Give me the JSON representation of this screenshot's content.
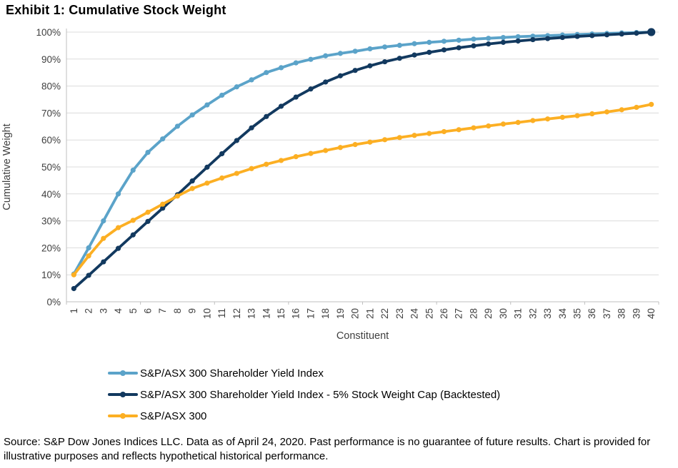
{
  "title": "Exhibit 1: Cumulative Stock Weight",
  "chart_data": {
    "type": "line",
    "title": "Exhibit 1: Cumulative Stock Weight",
    "xlabel": "Constituent",
    "ylabel": "Cumulative Weight",
    "x": [
      1,
      2,
      3,
      4,
      5,
      6,
      7,
      8,
      9,
      10,
      11,
      12,
      13,
      14,
      15,
      16,
      17,
      18,
      19,
      20,
      21,
      22,
      23,
      24,
      25,
      26,
      27,
      28,
      29,
      30,
      31,
      32,
      33,
      34,
      35,
      36,
      37,
      38,
      39,
      40
    ],
    "ylim": [
      0,
      100
    ],
    "ytick_labels": [
      "0%",
      "10%",
      "20%",
      "30%",
      "40%",
      "50%",
      "60%",
      "70%",
      "80%",
      "90%",
      "100%"
    ],
    "xtick_group": 5,
    "grid": true,
    "legend_position": "bottom-left",
    "colors": {
      "gridline": "#DCDCDC",
      "axis": "#BFBFBF"
    },
    "series": [
      {
        "name": "S&P/ASX 300 Shareholder Yield Index",
        "color": "#5BA3C9",
        "end_marker_large": false,
        "values": [
          10.3,
          20.0,
          30.0,
          40.0,
          48.8,
          55.4,
          60.4,
          65.1,
          69.3,
          73.0,
          76.6,
          79.7,
          82.3,
          85.0,
          86.8,
          88.6,
          89.9,
          91.2,
          92.1,
          92.9,
          93.8,
          94.5,
          95.1,
          95.7,
          96.2,
          96.6,
          97.0,
          97.4,
          97.7,
          98.0,
          98.3,
          98.5,
          98.7,
          98.9,
          99.1,
          99.3,
          99.5,
          99.7,
          99.85,
          100.0
        ]
      },
      {
        "name": "S&P/ASX 300 Shareholder Yield Index - 5% Stock Weight Cap (Backtested)",
        "color": "#12395F",
        "end_marker_large": true,
        "values": [
          4.9,
          9.8,
          14.8,
          19.8,
          24.8,
          29.8,
          34.7,
          39.7,
          44.8,
          49.9,
          54.9,
          59.8,
          64.5,
          68.7,
          72.5,
          75.9,
          78.9,
          81.5,
          83.8,
          85.8,
          87.5,
          89.0,
          90.3,
          91.5,
          92.5,
          93.4,
          94.2,
          94.9,
          95.6,
          96.2,
          96.7,
          97.2,
          97.6,
          98.0,
          98.4,
          98.7,
          99.0,
          99.3,
          99.6,
          100.0
        ]
      },
      {
        "name": "S&P/ASX 300",
        "color": "#FCAF23",
        "end_marker_large": false,
        "values": [
          10.0,
          17.0,
          23.5,
          27.5,
          30.2,
          33.2,
          36.2,
          39.2,
          42.0,
          44.0,
          45.9,
          47.6,
          49.4,
          51.0,
          52.4,
          53.8,
          55.0,
          56.1,
          57.2,
          58.3,
          59.2,
          60.1,
          60.9,
          61.7,
          62.4,
          63.1,
          63.8,
          64.5,
          65.2,
          65.9,
          66.5,
          67.2,
          67.8,
          68.4,
          69.0,
          69.7,
          70.4,
          71.2,
          72.1,
          73.2
        ]
      }
    ]
  },
  "footer": {
    "text": "Source: S&P Dow Jones Indices LLC. Data as of April 24, 2020. Past performance is no guarantee of future results. Chart is provided for illustrative purposes and reflects hypothetical historical performance."
  }
}
